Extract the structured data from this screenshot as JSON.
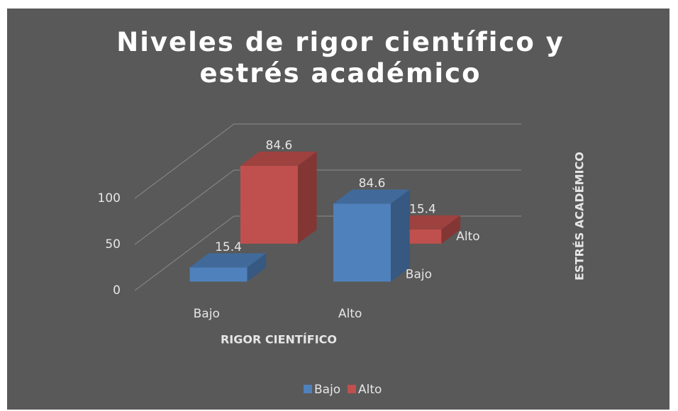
{
  "chart_data": {
    "type": "bar3d",
    "title": "Niveles de rigor científico y estrés académico",
    "x_label": "RIGOR CIENTÍFICO",
    "z_label": "ESTRÉS ACADÉMICO",
    "categories": [
      "Bajo",
      "Alto"
    ],
    "series": [
      {
        "name": "Bajo",
        "color": "#4f81bd",
        "values": [
          15.4,
          84.6
        ]
      },
      {
        "name": "Alto",
        "color": "#c0504d",
        "values": [
          84.6,
          15.4
        ]
      }
    ],
    "ylim": [
      0,
      100
    ],
    "yticks": [
      0,
      50,
      100
    ],
    "grid": true,
    "legend": "bottom"
  }
}
